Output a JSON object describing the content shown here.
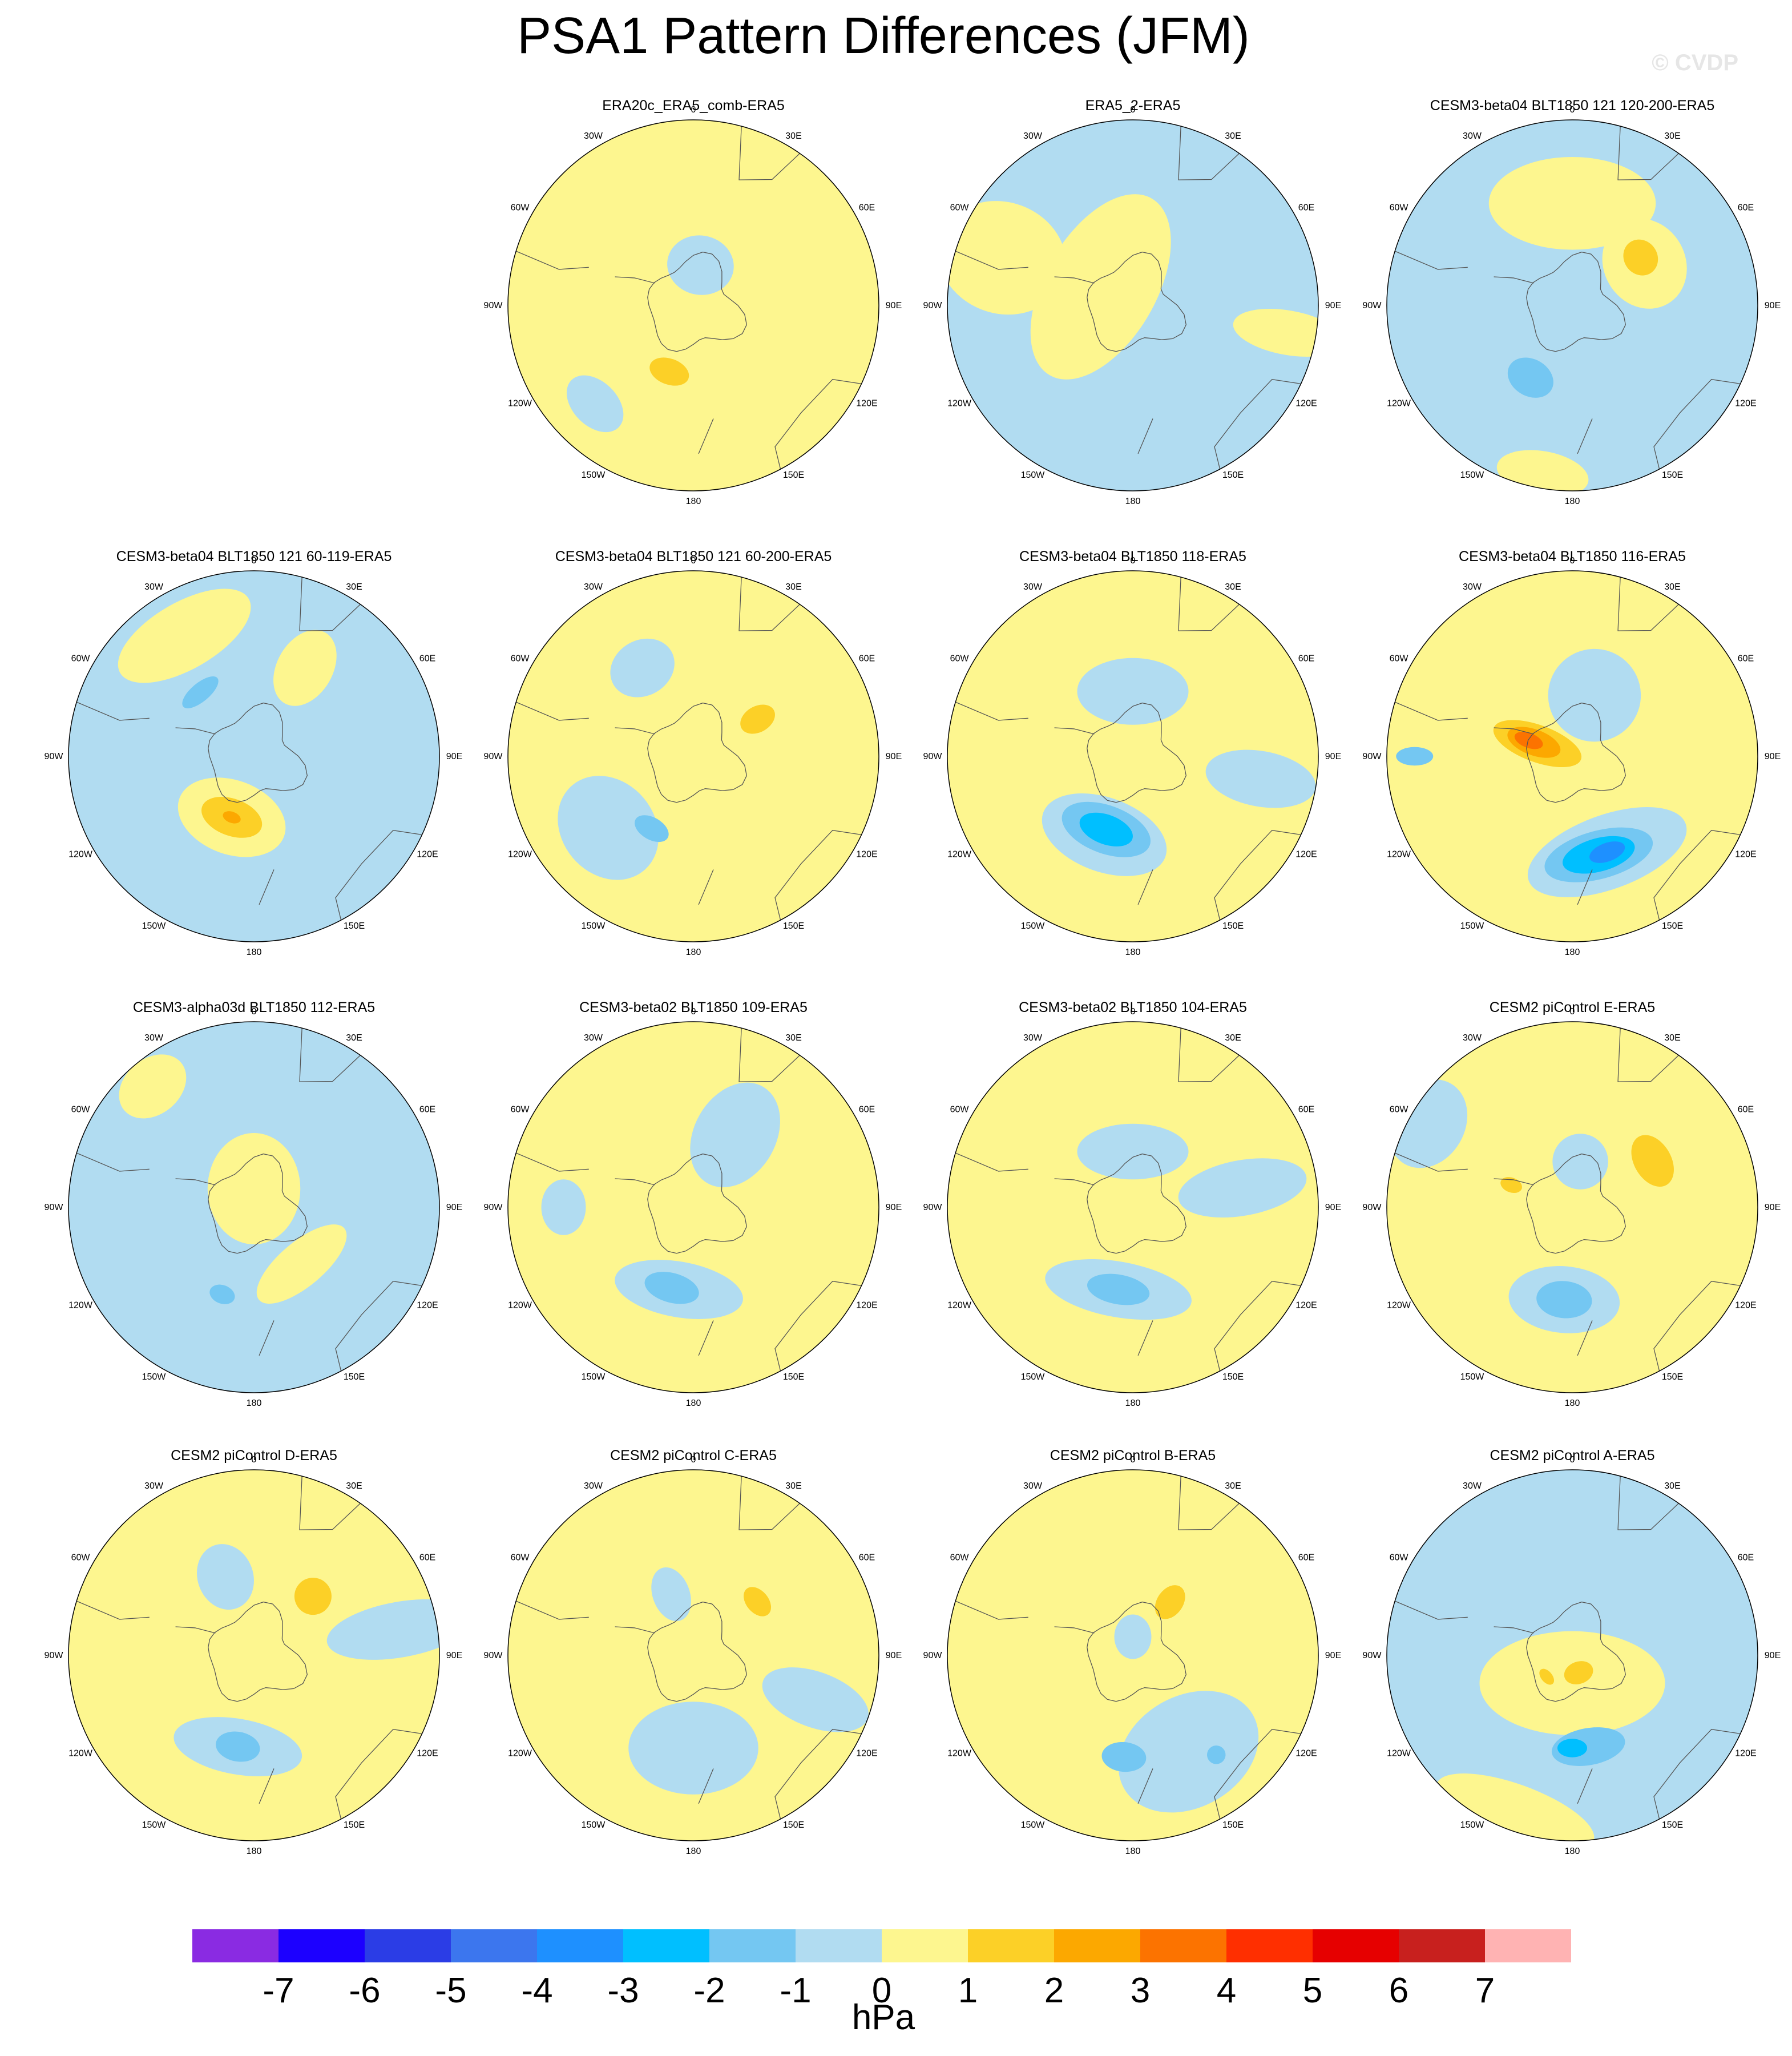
{
  "title": "PSA1 Pattern Differences (JFM)",
  "watermark": "© CVDP",
  "units": "hPa",
  "lon_labels": [
    "0",
    "30E",
    "60E",
    "90E",
    "120E",
    "150E",
    "180",
    "150W",
    "120W",
    "90W",
    "60W",
    "30W"
  ],
  "colorbar": {
    "levels": [
      -7,
      -6,
      -5,
      -4,
      -3,
      -2,
      -1,
      0,
      1,
      2,
      3,
      4,
      5,
      6,
      7
    ],
    "colors": [
      "#8a2be2",
      "#1c00ff",
      "#2b3de6",
      "#3c76ee",
      "#1e90ff",
      "#00bfff",
      "#74c7f2",
      "#b1dcf1",
      "#fdf68f",
      "#fcd027",
      "#fca800",
      "#fc7300",
      "#ff2f00",
      "#e60000",
      "#c8201e",
      "#ffb3b3"
    ]
  },
  "colors": {
    "pos1": "#fdf68f",
    "pos2": "#fcd027",
    "pos3": "#fca800",
    "pos4": "#fc7300",
    "neg1": "#b1dcf1",
    "neg2": "#74c7f2",
    "neg3": "#00bfff",
    "neg4": "#1e90ff"
  },
  "panels": [
    {
      "title": "ERA20c_ERA5_comb-ERA5",
      "base": "pos1",
      "blobs": [
        {
          "lon": 10,
          "r": 0.22,
          "rx": 0.18,
          "ry": 0.16,
          "c": "neg1"
        },
        {
          "lon": 200,
          "r": 0.38,
          "rx": 0.11,
          "ry": 0.07,
          "c": "pos2"
        },
        {
          "lon": 225,
          "r": 0.75,
          "rx": 0.18,
          "ry": 0.12,
          "c": "neg1"
        }
      ]
    },
    {
      "title": "ERA5_2-ERA5",
      "base": "neg1",
      "blobs": [
        {
          "lon": 300,
          "r": 0.2,
          "rx": 0.55,
          "ry": 0.3,
          "c": "pos1"
        },
        {
          "lon": 290,
          "r": 0.75,
          "rx": 0.3,
          "ry": 0.35,
          "c": "pos1"
        },
        {
          "lon": 100,
          "r": 0.85,
          "rx": 0.12,
          "ry": 0.3,
          "c": "pos1"
        }
      ]
    },
    {
      "title": "CESM3-beta04 BLT1850 121 120-200-ERA5",
      "base": "neg1",
      "blobs": [
        {
          "lon": 0,
          "r": 0.55,
          "rx": 0.45,
          "ry": 0.25,
          "c": "pos1"
        },
        {
          "lon": 60,
          "r": 0.45,
          "rx": 0.25,
          "ry": 0.22,
          "c": "pos1"
        },
        {
          "lon": 55,
          "r": 0.45,
          "rx": 0.1,
          "ry": 0.09,
          "c": "pos2"
        },
        {
          "lon": 210,
          "r": 0.45,
          "rx": 0.13,
          "ry": 0.1,
          "c": "neg2"
        },
        {
          "lon": 190,
          "r": 0.92,
          "rx": 0.25,
          "ry": 0.12,
          "c": "pos1"
        }
      ]
    },
    {
      "title": "CESM3-beta04 BLT1850 121 60-119-ERA5",
      "base": "neg1",
      "blobs": [
        {
          "lon": 330,
          "r": 0.75,
          "rx": 0.4,
          "ry": 0.18,
          "c": "pos1"
        },
        {
          "lon": 30,
          "r": 0.55,
          "rx": 0.15,
          "ry": 0.22,
          "c": "pos1"
        },
        {
          "lon": 200,
          "r": 0.35,
          "rx": 0.3,
          "ry": 0.2,
          "c": "pos1"
        },
        {
          "lon": 200,
          "r": 0.35,
          "rx": 0.17,
          "ry": 0.1,
          "c": "pos2"
        },
        {
          "lon": 200,
          "r": 0.35,
          "rx": 0.05,
          "ry": 0.03,
          "c": "pos3"
        },
        {
          "lon": 320,
          "r": 0.45,
          "rx": 0.12,
          "ry": 0.05,
          "c": "neg2"
        }
      ]
    },
    {
      "title": "CESM3-beta04 BLT1850 121 60-200-ERA5",
      "base": "pos1",
      "blobs": [
        {
          "lon": 330,
          "r": 0.55,
          "rx": 0.18,
          "ry": 0.15,
          "c": "neg1"
        },
        {
          "lon": 230,
          "r": 0.6,
          "rx": 0.3,
          "ry": 0.25,
          "c": "neg1"
        },
        {
          "lon": 210,
          "r": 0.45,
          "rx": 0.1,
          "ry": 0.06,
          "c": "neg2"
        },
        {
          "lon": 60,
          "r": 0.4,
          "rx": 0.07,
          "ry": 0.1,
          "c": "pos2"
        }
      ]
    },
    {
      "title": "CESM3-beta04 BLT1850 118-ERA5",
      "base": "pos1",
      "blobs": [
        {
          "lon": 0,
          "r": 0.35,
          "rx": 0.3,
          "ry": 0.18,
          "c": "neg1"
        },
        {
          "lon": 200,
          "r": 0.45,
          "rx": 0.35,
          "ry": 0.2,
          "c": "neg1"
        },
        {
          "lon": 200,
          "r": 0.42,
          "rx": 0.25,
          "ry": 0.13,
          "c": "neg2"
        },
        {
          "lon": 200,
          "r": 0.42,
          "rx": 0.15,
          "ry": 0.08,
          "c": "neg3"
        },
        {
          "lon": 100,
          "r": 0.7,
          "rx": 0.15,
          "ry": 0.3,
          "c": "neg1"
        }
      ]
    },
    {
      "title": "CESM3-beta04 BLT1850 116-ERA5",
      "base": "pos1",
      "blobs": [
        {
          "lon": 20,
          "r": 0.35,
          "rx": 0.25,
          "ry": 0.25,
          "c": "neg1"
        },
        {
          "lon": 160,
          "r": 0.55,
          "rx": 0.45,
          "ry": 0.2,
          "c": "neg1"
        },
        {
          "lon": 165,
          "r": 0.55,
          "rx": 0.3,
          "ry": 0.13,
          "c": "neg2"
        },
        {
          "lon": 165,
          "r": 0.55,
          "rx": 0.2,
          "ry": 0.09,
          "c": "neg3"
        },
        {
          "lon": 160,
          "r": 0.55,
          "rx": 0.1,
          "ry": 0.05,
          "c": "neg4"
        },
        {
          "lon": 290,
          "r": 0.2,
          "rx": 0.1,
          "ry": 0.25,
          "c": "pos2"
        },
        {
          "lon": 290,
          "r": 0.22,
          "rx": 0.07,
          "ry": 0.15,
          "c": "pos3"
        },
        {
          "lon": 290,
          "r": 0.25,
          "rx": 0.04,
          "ry": 0.08,
          "c": "pos4"
        },
        {
          "lon": 270,
          "r": 0.85,
          "rx": 0.05,
          "ry": 0.1,
          "c": "neg2"
        }
      ]
    },
    {
      "title": "CESM3-alpha03d BLT1850 112-ERA5",
      "base": "neg1",
      "blobs": [
        {
          "lon": 0,
          "r": 0.1,
          "rx": 0.25,
          "ry": 0.3,
          "c": "pos1"
        },
        {
          "lon": 140,
          "r": 0.4,
          "rx": 0.3,
          "ry": 0.12,
          "c": "pos1"
        },
        {
          "lon": 320,
          "r": 0.85,
          "rx": 0.2,
          "ry": 0.15,
          "c": "pos1"
        },
        {
          "lon": 200,
          "r": 0.5,
          "rx": 0.07,
          "ry": 0.05,
          "c": "neg2"
        }
      ]
    },
    {
      "title": "CESM3-beta02 BLT1850 109-ERA5",
      "base": "pos1",
      "blobs": [
        {
          "lon": 30,
          "r": 0.45,
          "rx": 0.22,
          "ry": 0.3,
          "c": "neg1"
        },
        {
          "lon": 190,
          "r": 0.45,
          "rx": 0.35,
          "ry": 0.15,
          "c": "neg1"
        },
        {
          "lon": 195,
          "r": 0.45,
          "rx": 0.15,
          "ry": 0.08,
          "c": "neg2"
        },
        {
          "lon": 270,
          "r": 0.7,
          "rx": 0.15,
          "ry": 0.12,
          "c": "neg1"
        }
      ]
    },
    {
      "title": "CESM3-beta02 BLT1850 104-ERA5",
      "base": "pos1",
      "blobs": [
        {
          "lon": 0,
          "r": 0.3,
          "rx": 0.3,
          "ry": 0.15,
          "c": "neg1"
        },
        {
          "lon": 190,
          "r": 0.45,
          "rx": 0.4,
          "ry": 0.15,
          "c": "neg1"
        },
        {
          "lon": 190,
          "r": 0.45,
          "rx": 0.17,
          "ry": 0.08,
          "c": "neg2"
        },
        {
          "lon": 80,
          "r": 0.6,
          "rx": 0.15,
          "ry": 0.35,
          "c": "neg1"
        }
      ]
    },
    {
      "title": "CESM2 piControl E-ERA5",
      "base": "pos1",
      "blobs": [
        {
          "lon": 10,
          "r": 0.25,
          "rx": 0.15,
          "ry": 0.15,
          "c": "neg1"
        },
        {
          "lon": 185,
          "r": 0.5,
          "rx": 0.3,
          "ry": 0.18,
          "c": "neg1"
        },
        {
          "lon": 185,
          "r": 0.5,
          "rx": 0.15,
          "ry": 0.1,
          "c": "neg2"
        },
        {
          "lon": 60,
          "r": 0.5,
          "rx": 0.15,
          "ry": 0.1,
          "c": "pos2"
        },
        {
          "lon": 290,
          "r": 0.35,
          "rx": 0.04,
          "ry": 0.06,
          "c": "pos2"
        },
        {
          "lon": 300,
          "r": 0.9,
          "rx": 0.25,
          "ry": 0.2,
          "c": "neg1"
        }
      ]
    },
    {
      "title": "CESM2 piControl D-ERA5",
      "base": "pos1",
      "blobs": [
        {
          "lon": 340,
          "r": 0.45,
          "rx": 0.15,
          "ry": 0.18,
          "c": "neg1"
        },
        {
          "lon": 190,
          "r": 0.5,
          "rx": 0.35,
          "ry": 0.15,
          "c": "neg1"
        },
        {
          "lon": 190,
          "r": 0.5,
          "rx": 0.12,
          "ry": 0.08,
          "c": "neg2"
        },
        {
          "lon": 45,
          "r": 0.45,
          "rx": 0.1,
          "ry": 0.1,
          "c": "pos2"
        },
        {
          "lon": 80,
          "r": 0.8,
          "rx": 0.15,
          "ry": 0.4,
          "c": "neg1"
        }
      ]
    },
    {
      "title": "CESM2 piControl C-ERA5",
      "base": "pos1",
      "blobs": [
        {
          "lon": 340,
          "r": 0.35,
          "rx": 0.1,
          "ry": 0.15,
          "c": "neg1"
        },
        {
          "lon": 180,
          "r": 0.5,
          "rx": 0.35,
          "ry": 0.25,
          "c": "neg1"
        },
        {
          "lon": 50,
          "r": 0.45,
          "rx": 0.09,
          "ry": 0.06,
          "c": "pos2"
        },
        {
          "lon": 110,
          "r": 0.7,
          "rx": 0.15,
          "ry": 0.3,
          "c": "neg1"
        }
      ]
    },
    {
      "title": "CESM2 piControl B-ERA5",
      "base": "pos1",
      "blobs": [
        {
          "lon": 150,
          "r": 0.6,
          "rx": 0.4,
          "ry": 0.3,
          "c": "neg1"
        },
        {
          "lon": 185,
          "r": 0.55,
          "rx": 0.12,
          "ry": 0.08,
          "c": "neg2"
        },
        {
          "lon": 140,
          "r": 0.7,
          "rx": 0.05,
          "ry": 0.05,
          "c": "neg2"
        },
        {
          "lon": 35,
          "r": 0.35,
          "rx": 0.07,
          "ry": 0.1,
          "c": "pos2"
        },
        {
          "lon": 0,
          "r": 0.1,
          "rx": 0.1,
          "ry": 0.12,
          "c": "neg1"
        }
      ]
    },
    {
      "title": "CESM2 piControl A-ERA5",
      "base": "neg1",
      "blobs": [
        {
          "lon": 180,
          "r": 0.15,
          "rx": 0.5,
          "ry": 0.28,
          "c": "pos1"
        },
        {
          "lon": 200,
          "r": 0.9,
          "rx": 0.45,
          "ry": 0.15,
          "c": "pos1"
        },
        {
          "lon": 170,
          "r": 0.5,
          "rx": 0.2,
          "ry": 0.1,
          "c": "neg2"
        },
        {
          "lon": 180,
          "r": 0.5,
          "rx": 0.08,
          "ry": 0.05,
          "c": "neg3"
        },
        {
          "lon": 160,
          "r": 0.1,
          "rx": 0.08,
          "ry": 0.06,
          "c": "pos2"
        },
        {
          "lon": 230,
          "r": 0.18,
          "rx": 0.05,
          "ry": 0.03,
          "c": "pos2"
        }
      ]
    }
  ]
}
